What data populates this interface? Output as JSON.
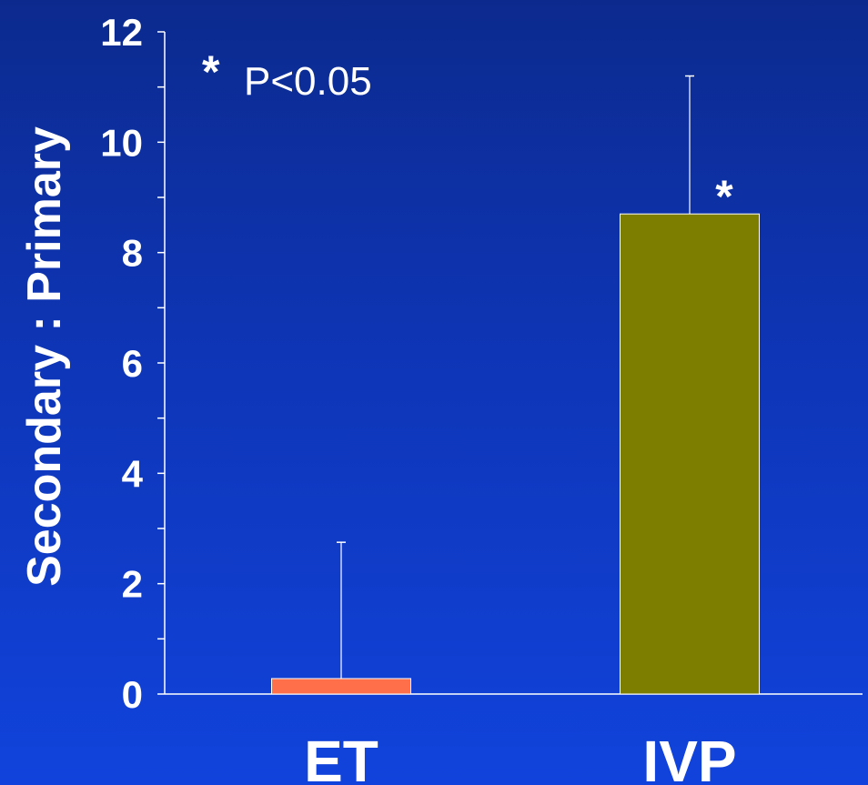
{
  "chart_data": {
    "type": "bar",
    "categories": [
      "ET",
      "IVP"
    ],
    "values": [
      0.28,
      8.7
    ],
    "error_upper": [
      2.75,
      11.2
    ],
    "ylabel": "Secondary : Primary",
    "ylim": [
      0,
      12
    ],
    "yticks": [
      "0",
      "2",
      "4",
      "6",
      "8",
      "10",
      "12"
    ],
    "grid": false,
    "legend": "none",
    "colors": {
      "ET": "#ff6f4a",
      "IVP": "#7d7d00",
      "axis": "#ffffff",
      "background_top": "#0c2a8e",
      "background_bottom": "#1143dc"
    },
    "annotations": {
      "legend_star": "*",
      "legend_text": "P<0.05",
      "bar_star": "*"
    }
  }
}
